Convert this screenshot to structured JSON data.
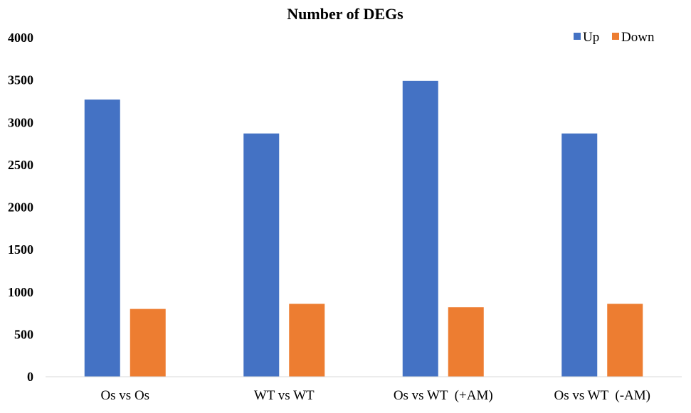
{
  "chart_data": {
    "type": "bar",
    "title": "Number of DEGs",
    "categories": [
      "Os vs Os",
      "WT vs WT",
      "Os vs WT  (+AM)",
      "Os vs WT  (-AM)"
    ],
    "series": [
      {
        "name": "Up",
        "color": "#4472C4",
        "values": [
          3270,
          2870,
          3490,
          2870
        ]
      },
      {
        "name": "Down",
        "color": "#ED7D31",
        "values": [
          800,
          860,
          820,
          860
        ]
      }
    ],
    "yticks": [
      "0",
      "500",
      "1000",
      "1500",
      "2000",
      "2500",
      "3000",
      "3500",
      "4000"
    ],
    "ylim": [
      0,
      4000
    ],
    "grid": false,
    "legend_position": "top-right"
  }
}
